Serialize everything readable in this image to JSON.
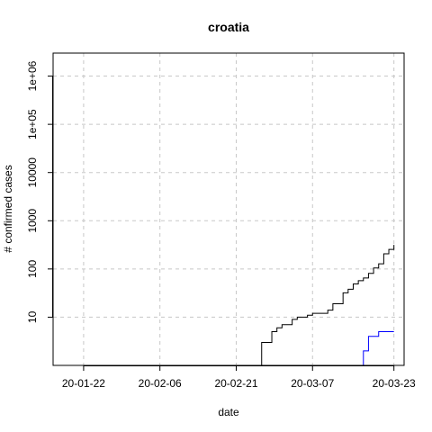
{
  "chart_data": {
    "type": "line",
    "title": "croatia",
    "xlabel": "date",
    "ylabel": "# confirmed cases",
    "yscale": "log",
    "grid": true,
    "xlim": [
      "2020-01-16",
      "2020-03-25"
    ],
    "ylim": [
      1,
      3000000
    ],
    "x_ticks": [
      {
        "date": "2020-01-22",
        "label": "20-01-22"
      },
      {
        "date": "2020-02-06",
        "label": "20-02-06"
      },
      {
        "date": "2020-02-21",
        "label": "20-02-21"
      },
      {
        "date": "2020-03-07",
        "label": "20-03-07"
      },
      {
        "date": "2020-03-23",
        "label": "20-03-23"
      }
    ],
    "y_ticks": [
      {
        "value": 10,
        "label": "10"
      },
      {
        "value": 100,
        "label": "100"
      },
      {
        "value": 1000,
        "label": "1000"
      },
      {
        "value": 10000,
        "label": "10000"
      },
      {
        "value": 100000,
        "label": "1e+05"
      },
      {
        "value": 1000000,
        "label": "1e+06"
      }
    ],
    "series": [
      {
        "color": "#000000",
        "x": [
          "2020-02-25",
          "2020-02-26",
          "2020-02-27",
          "2020-02-28",
          "2020-02-29",
          "2020-03-01",
          "2020-03-02",
          "2020-03-03",
          "2020-03-04",
          "2020-03-05",
          "2020-03-06",
          "2020-03-07",
          "2020-03-08",
          "2020-03-09",
          "2020-03-10",
          "2020-03-11",
          "2020-03-12",
          "2020-03-13",
          "2020-03-14",
          "2020-03-15",
          "2020-03-16",
          "2020-03-17",
          "2020-03-18",
          "2020-03-19",
          "2020-03-20",
          "2020-03-21",
          "2020-03-22",
          "2020-03-23"
        ],
        "y": [
          1,
          3,
          3,
          5,
          6,
          7,
          7,
          9,
          10,
          10,
          11,
          12,
          12,
          12,
          14,
          19,
          19,
          32,
          38,
          49,
          57,
          65,
          81,
          105,
          128,
          206,
          254,
          315
        ]
      },
      {
        "color": "#0000ff",
        "x": [
          "2020-03-14",
          "2020-03-15",
          "2020-03-16",
          "2020-03-17",
          "2020-03-18",
          "2020-03-19",
          "2020-03-20",
          "2020-03-21",
          "2020-03-22",
          "2020-03-23"
        ],
        "y": [
          1,
          1,
          1,
          2,
          4,
          4,
          5,
          5,
          5,
          5
        ]
      },
      {
        "color": "#ff0000",
        "x": [
          "2020-03-19",
          "2020-03-20",
          "2020-03-21",
          "2020-03-22",
          "2020-03-23"
        ],
        "y": [
          1,
          1,
          1,
          1,
          1
        ]
      }
    ]
  }
}
